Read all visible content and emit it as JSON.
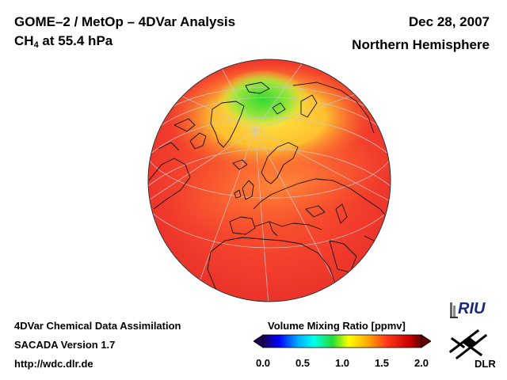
{
  "header": {
    "title_line1": "GOME–2 / MetOp – 4DVar Analysis",
    "species_main": "CH",
    "species_sub": "4",
    "species_rest": " at 55.4 hPa",
    "date": "Dec 28, 2007",
    "region": "Northern Hemisphere"
  },
  "footer": {
    "line1": "4DVar Chemical Data Assimilation",
    "line2": "SACADA Version 1.7",
    "line3": "http://wdc.dlr.de"
  },
  "colorbar": {
    "title": "Volume Mixing Ratio [ppmv]",
    "ticks": [
      {
        "label": "0.0",
        "value": 0.0
      },
      {
        "label": "0.5",
        "value": 0.5
      },
      {
        "label": "1.0",
        "value": 1.0
      },
      {
        "label": "1.5",
        "value": 1.5
      },
      {
        "label": "2.0",
        "value": 2.0
      }
    ],
    "stops": [
      "#1a0050",
      "#0000ff",
      "#00aaff",
      "#00ffee",
      "#22dd33",
      "#ffff00",
      "#ffaa00",
      "#ff3a1a",
      "#cc0000",
      "#660000"
    ]
  },
  "logos": {
    "riu": "RIU",
    "dlr": "DLR"
  },
  "colors": {
    "ocean_field": "#f03a2a",
    "high_field": "#ffd23a",
    "polar_low": "#55e033",
    "coast": "#111111",
    "grid": "#c8c8c8"
  }
}
